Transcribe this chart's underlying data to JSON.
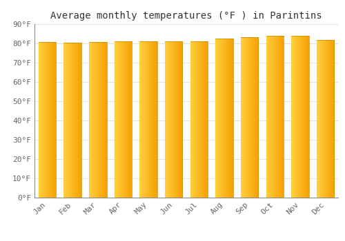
{
  "title": "Average monthly temperatures (°F ) in Parintins",
  "months": [
    "Jan",
    "Feb",
    "Mar",
    "Apr",
    "May",
    "Jun",
    "Jul",
    "Aug",
    "Sep",
    "Oct",
    "Nov",
    "Dec"
  ],
  "values": [
    80.6,
    80.2,
    80.6,
    81.0,
    81.1,
    81.1,
    81.1,
    82.4,
    83.3,
    84.0,
    83.8,
    81.9
  ],
  "ylim": [
    0,
    90
  ],
  "yticks": [
    0,
    10,
    20,
    30,
    40,
    50,
    60,
    70,
    80,
    90
  ],
  "ytick_labels": [
    "0°F",
    "10°F",
    "20°F",
    "30°F",
    "40°F",
    "50°F",
    "60°F",
    "70°F",
    "80°F",
    "90°F"
  ],
  "bar_color_left": "#FFD040",
  "bar_color_right": "#F5A000",
  "background_color": "#FFFFFF",
  "grid_color": "#E0E0E0",
  "title_fontsize": 10,
  "tick_fontsize": 8,
  "bar_width": 0.7
}
